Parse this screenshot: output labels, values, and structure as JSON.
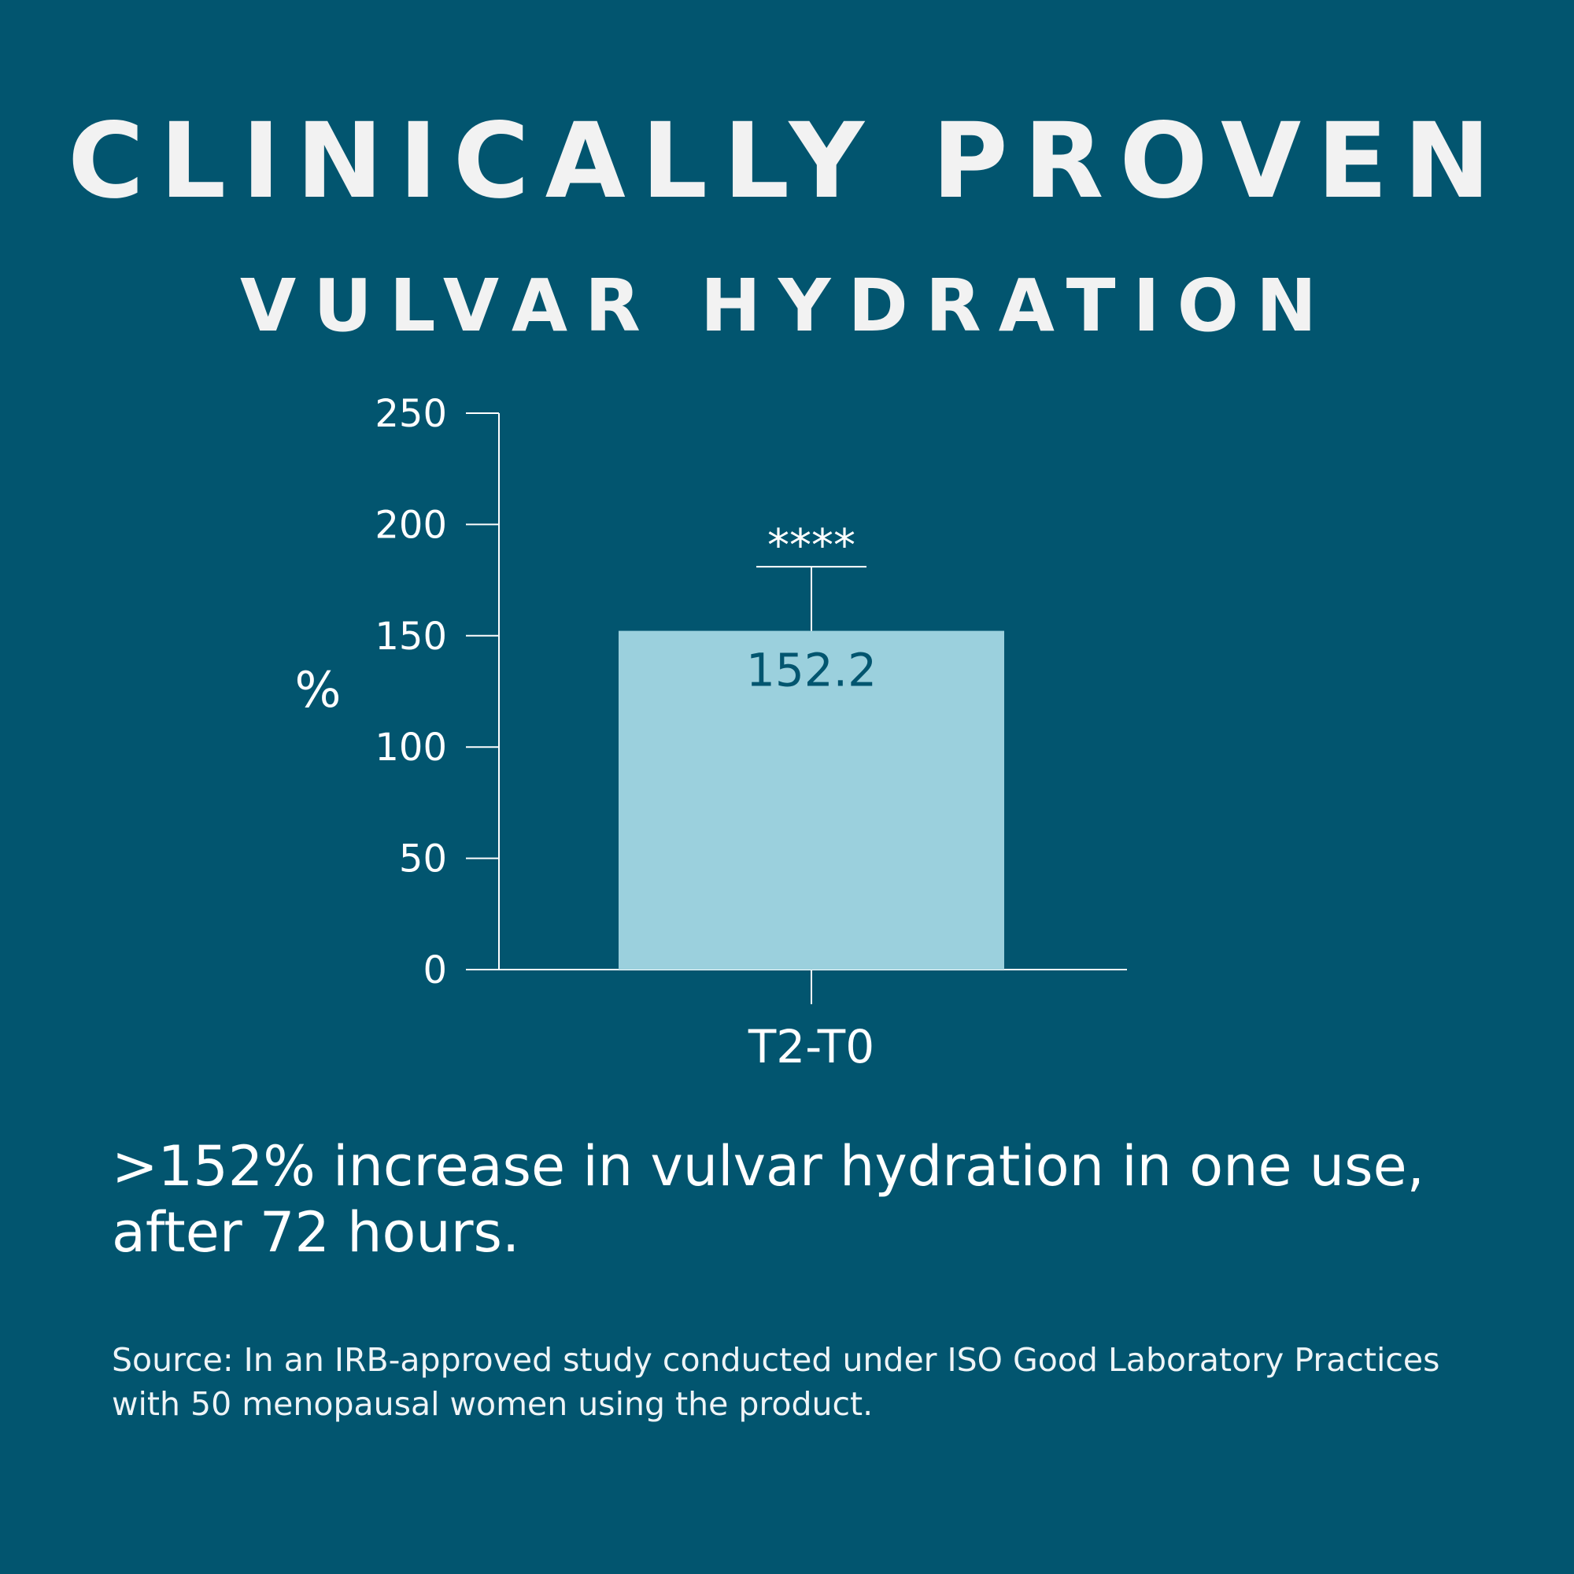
{
  "title": "CLINICALLY PROVEN",
  "subtitle": "VULVAR HYDRATION",
  "colors": {
    "background": "#02556f",
    "bar": "#9bd0dd",
    "text": "#ffffff",
    "bar_label": "#02556f"
  },
  "chart_data": {
    "type": "bar",
    "categories": [
      "T2-T0"
    ],
    "values": [
      152.2
    ],
    "value_labels": [
      "152.2"
    ],
    "error_upper": [
      181
    ],
    "significance": "****",
    "ylabel": "%",
    "xlabel": "",
    "ylim": [
      0,
      250
    ],
    "yticks": [
      0,
      50,
      100,
      150,
      200,
      250
    ],
    "grid": false
  },
  "caption": ">152% increase in vulvar hydration in one use, after 72 hours.",
  "source": "Source: In an IRB-approved study conducted under ISO Good Laboratory Practices with 50 menopausal women using the product."
}
